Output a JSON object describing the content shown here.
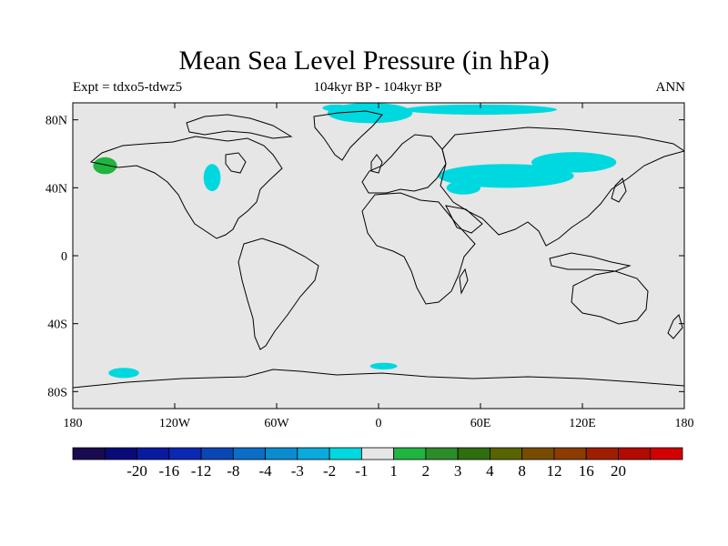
{
  "header": {
    "title": "Mean Sea Level Pressure (in hPa)",
    "experiment": "Expt = tdxo5-tdwz5",
    "period": "104kyr BP - 104kyr BP",
    "season": "ANN"
  },
  "chart_data": {
    "type": "heatmap",
    "title": "Mean Sea Level Pressure (in hPa)",
    "projection": "cylindrical equidistant",
    "lon_range": [
      -180,
      180
    ],
    "lat_range": [
      -90,
      90
    ],
    "x_ticks": [
      {
        "value": -180,
        "label": "180"
      },
      {
        "value": -120,
        "label": "120W"
      },
      {
        "value": -60,
        "label": "60W"
      },
      {
        "value": 0,
        "label": "0"
      },
      {
        "value": 60,
        "label": "60E"
      },
      {
        "value": 120,
        "label": "120E"
      },
      {
        "value": 180,
        "label": "180"
      }
    ],
    "y_ticks": [
      {
        "value": 80,
        "label": "80N"
      },
      {
        "value": 40,
        "label": "40N"
      },
      {
        "value": 0,
        "label": "0"
      },
      {
        "value": -40,
        "label": "40S"
      },
      {
        "value": -80,
        "label": "80S"
      }
    ],
    "background_color": "#e6e6e6",
    "regions": [
      {
        "color_class": "-2 to -1",
        "color": "#00d8e0",
        "lon": -5,
        "lat": 84,
        "rlon": 25,
        "rlat": 6
      },
      {
        "color_class": "-2 to -1",
        "color": "#00d8e0",
        "lon": 60,
        "lat": 86,
        "rlon": 45,
        "rlat": 3
      },
      {
        "color_class": "-2 to -1",
        "color": "#00d8e0",
        "lon": -25,
        "lat": 87,
        "rlon": 8,
        "rlat": 2
      },
      {
        "color_class": "-2 to -1",
        "color": "#00d8e0",
        "lon": 75,
        "lat": 47,
        "rlon": 40,
        "rlat": 7
      },
      {
        "color_class": "-2 to -1",
        "color": "#00d8e0",
        "lon": 115,
        "lat": 55,
        "rlon": 25,
        "rlat": 6
      },
      {
        "color_class": "-2 to -1",
        "color": "#00d8e0",
        "lon": 50,
        "lat": 40,
        "rlon": 10,
        "rlat": 4
      },
      {
        "color_class": "-2 to -1",
        "color": "#00d8e0",
        "lon": -98,
        "lat": 46,
        "rlon": 5,
        "rlat": 8
      },
      {
        "color_class": "-2 to -1",
        "color": "#00d8e0",
        "lon": -150,
        "lat": -69,
        "rlon": 9,
        "rlat": 3
      },
      {
        "color_class": "-2 to -1",
        "color": "#00d8e0",
        "lon": 3,
        "lat": -65,
        "rlon": 8,
        "rlat": 2
      },
      {
        "color_class": "1 to 2",
        "color": "#20b440",
        "lon": -161,
        "lat": 53,
        "rlon": 7,
        "rlat": 5
      }
    ],
    "colorbar": {
      "colors": [
        "#1a0a50",
        "#0a0a78",
        "#0a1aa0",
        "#0a28b4",
        "#0a46b4",
        "#0a6ec8",
        "#0a8cd0",
        "#0aaadc",
        "#00d8e0",
        "#e6e6e6",
        "#20b440",
        "#2c8c2c",
        "#2e6e0e",
        "#586400",
        "#784c00",
        "#8c3c00",
        "#a01e00",
        "#b40a00",
        "#d20000"
      ],
      "labels": [
        "-20",
        "-16",
        "-12",
        "-8",
        "-4",
        "-3",
        "-2",
        "-1",
        "1",
        "2",
        "3",
        "4",
        "8",
        "12",
        "16",
        "20"
      ]
    }
  }
}
